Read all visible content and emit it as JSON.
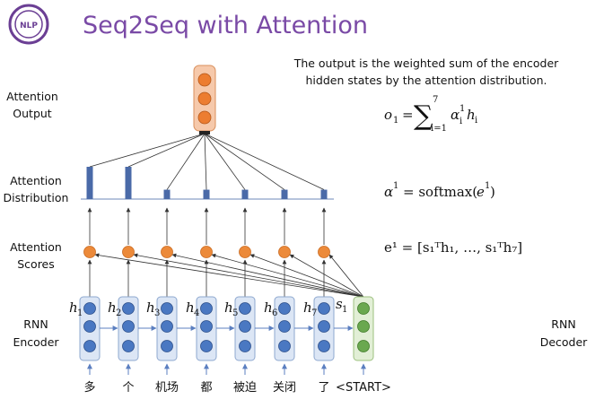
{
  "slide": {
    "title": "Seq2Seq with Attention",
    "logo_text": "NLP"
  },
  "labels": {
    "attention_output": [
      "Attention",
      "Output"
    ],
    "attention_distribution": [
      "Attention",
      "Distribution"
    ],
    "attention_scores": [
      "Attention",
      "Scores"
    ],
    "rnn_encoder": [
      "RNN",
      "Encoder"
    ],
    "rnn_decoder": [
      "RNN",
      "Decoder"
    ]
  },
  "note": {
    "line1": "The output is the weighted sum of the encoder",
    "line2": "hidden states by the attention distribution."
  },
  "equations": {
    "output": {
      "lhs": "o",
      "lhs_sub": "1",
      "eq": "=",
      "sum_top": "7",
      "sum_bottom": "i=1",
      "term": "α",
      "term_sub": "i",
      "term_sup": "1",
      "h": "h",
      "h_sub": "i"
    },
    "alpha": {
      "lhs": "α",
      "lhs_sup": "1",
      "rhs": "= softmax(",
      "arg": "e",
      "arg_sup": "1",
      "close": ")"
    },
    "scores": "e¹ = [s₁ᵀh₁, …, s₁ᵀh₇]"
  },
  "encoder": {
    "words": [
      "多",
      "个",
      "机场",
      "都",
      "被迫",
      "关闭",
      "了"
    ],
    "hidden_labels": [
      "h",
      "h",
      "h",
      "h",
      "h",
      "h",
      "h"
    ],
    "hidden_subs": [
      "1",
      "2",
      "3",
      "4",
      "5",
      "6",
      "7"
    ]
  },
  "decoder": {
    "start_token": "<START>",
    "state_label": "s",
    "state_sub": "1"
  },
  "attention_distribution_values": [
    0.62,
    0.62,
    0.18,
    0.18,
    0.18,
    0.18,
    0.18
  ],
  "colors": {
    "title": "#7a4aa6",
    "encoder_box_fill": "#dce6f5",
    "encoder_box_stroke": "#8ea8cf",
    "encoder_dot": "#4a78c2",
    "decoder_box_fill": "#e2efd6",
    "decoder_box_stroke": "#9cc07f",
    "decoder_dot": "#6aa84f",
    "score_dot": "#ec8a3a",
    "output_box_fill": "#f6c9ab",
    "output_dot": "#ec7d31",
    "dist_bar": "#4a6aa8"
  }
}
